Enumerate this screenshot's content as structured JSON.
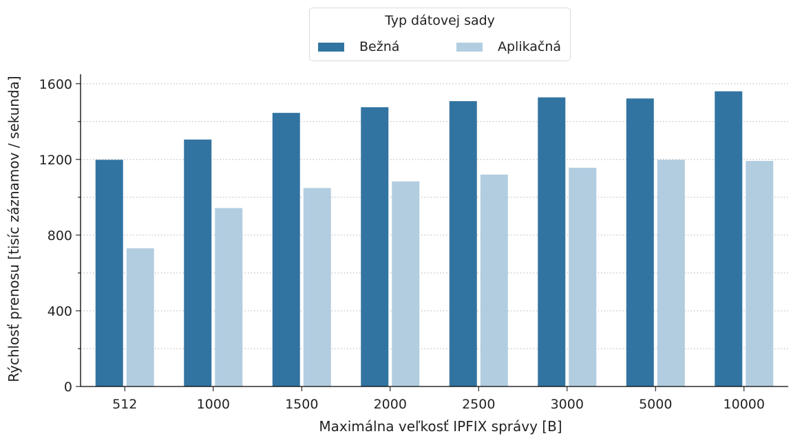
{
  "chart_data": {
    "type": "bar",
    "xlabel": "Maximálna veľkosť IPFIX správy [B]",
    "ylabel": "Rýchlosť prenosu [tisíc záznamov / sekunda]",
    "categories": [
      "512",
      "1000",
      "1500",
      "2000",
      "2500",
      "3000",
      "5000",
      "10000"
    ],
    "series": [
      {
        "name": "Bežná",
        "color": "#3274a1",
        "values": [
          1198,
          1305,
          1446,
          1476,
          1508,
          1528,
          1522,
          1560
        ]
      },
      {
        "name": "Aplikačná",
        "color": "#b2cde0",
        "values": [
          730,
          943,
          1049,
          1084,
          1120,
          1156,
          1198,
          1192
        ]
      }
    ],
    "ylim": [
      0,
      1650
    ],
    "yticks": [
      0,
      400,
      800,
      1200,
      1600
    ],
    "grid": "horizontal dotted",
    "legend": {
      "title": "Typ dátovej sady",
      "placement": "top-center"
    }
  }
}
